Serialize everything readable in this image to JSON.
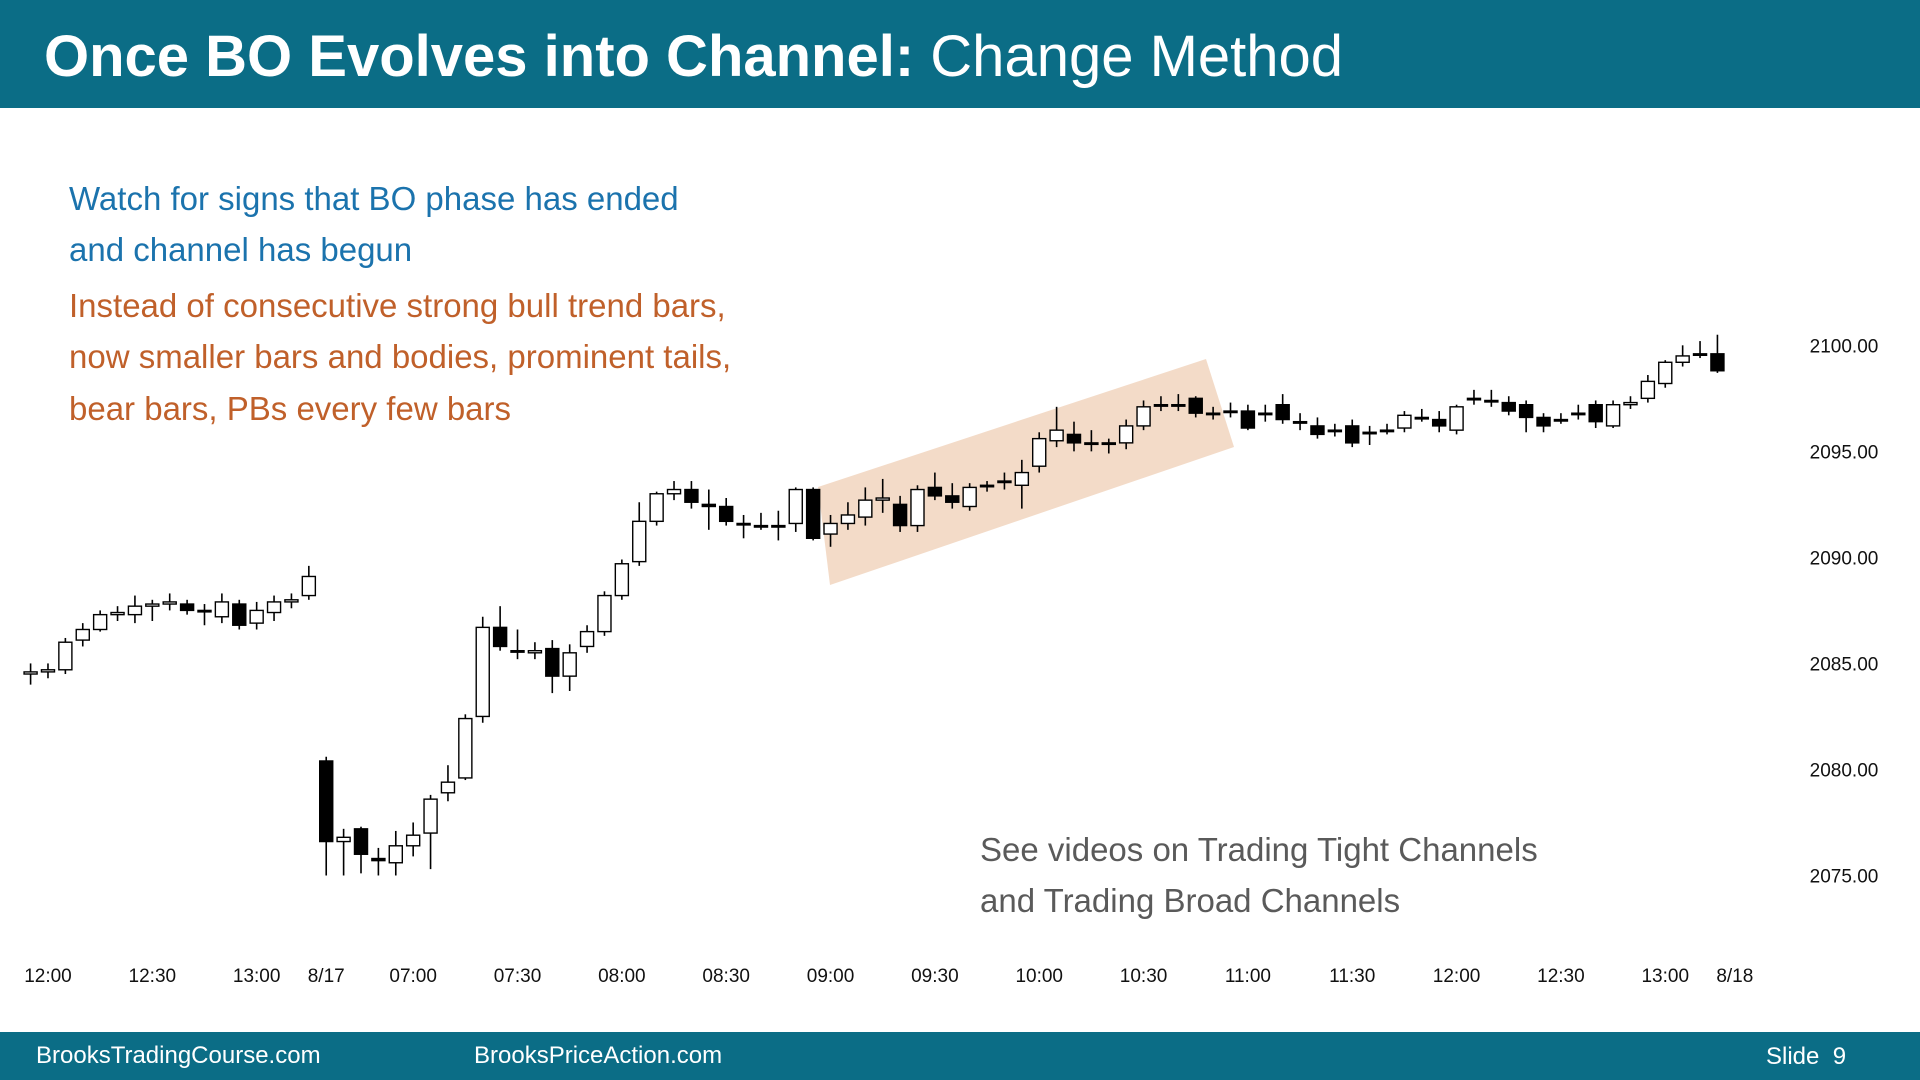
{
  "header": {
    "title_bold": "Once BO Evolves into Channel:",
    "title_rest": "Change Method"
  },
  "notes": {
    "blue": [
      "Watch for signs that BO phase has ended",
      "and channel has begun"
    ],
    "orange": [
      "Instead of consecutive strong bull trend bars,",
      "now smaller bars and bodies, prominent tails,",
      "bear bars, PBs every few bars"
    ],
    "gray": [
      "See videos on Trading Tight Channels",
      "and Trading Broad Channels"
    ]
  },
  "footer": {
    "left": "BrooksTradingCourse.com",
    "middle": "BrooksPriceAction.com",
    "slide": "Slide  9"
  },
  "chart_data": {
    "type": "candlestick",
    "bull_color": "#ffffff",
    "bear_color": "#000000",
    "edge_color": "#000000",
    "xlim": [
      -1,
      100
    ],
    "ylim": [
      2072,
      2104
    ],
    "xticks": [
      {
        "value": 1,
        "label": "12:00"
      },
      {
        "value": 7,
        "label": "12:30"
      },
      {
        "value": 13,
        "label": "13:00"
      },
      {
        "value": 17,
        "label": "8/17"
      },
      {
        "value": 22,
        "label": "07:00"
      },
      {
        "value": 28,
        "label": "07:30"
      },
      {
        "value": 34,
        "label": "08:00"
      },
      {
        "value": 40,
        "label": "08:30"
      },
      {
        "value": 46,
        "label": "09:00"
      },
      {
        "value": 52,
        "label": "09:30"
      },
      {
        "value": 58,
        "label": "10:00"
      },
      {
        "value": 64,
        "label": "10:30"
      },
      {
        "value": 70,
        "label": "11:00"
      },
      {
        "value": 76,
        "label": "11:30"
      },
      {
        "value": 82,
        "label": "12:00"
      },
      {
        "value": 88,
        "label": "12:30"
      },
      {
        "value": 94,
        "label": "13:00"
      },
      {
        "value": 98,
        "label": "8/18"
      }
    ],
    "yticks": [
      {
        "value": 2075,
        "label": "2075.00"
      },
      {
        "value": 2080,
        "label": "2080.00"
      },
      {
        "value": 2085,
        "label": "2085.00"
      },
      {
        "value": 2090,
        "label": "2090.00"
      },
      {
        "value": 2095,
        "label": "2095.00"
      },
      {
        "value": 2100,
        "label": "2100.00"
      }
    ],
    "open": [
      2084.5,
      2084.6,
      2084.7,
      2086.1,
      2086.6,
      2087.3,
      2087.3,
      2087.7,
      2087.8,
      2087.8,
      2087.5,
      2087.2,
      2087.8,
      2086.9,
      2087.4,
      2087.9,
      2088.2,
      2080.4,
      2076.6,
      2077.2,
      2075.8,
      2075.6,
      2076.4,
      2077.0,
      2078.9,
      2079.6,
      2082.5,
      2086.7,
      2085.6,
      2085.5,
      2085.7,
      2084.4,
      2085.8,
      2086.5,
      2088.2,
      2089.8,
      2091.7,
      2093.0,
      2093.2,
      2092.5,
      2092.4,
      2091.6,
      2091.5,
      2091.5,
      2091.6,
      2093.2,
      2091.1,
      2091.6,
      2091.9,
      2092.7,
      2092.5,
      2091.5,
      2093.3,
      2092.9,
      2092.4,
      2093.4,
      2093.6,
      2093.4,
      2094.3,
      2095.5,
      2095.8,
      2095.4,
      2095.4,
      2095.4,
      2096.2,
      2097.2,
      2097.2,
      2097.5,
      2096.8,
      2096.9,
      2096.9,
      2096.8,
      2097.2,
      2096.4,
      2096.2,
      2096.0,
      2096.2,
      2095.9,
      2096.0,
      2096.1,
      2096.6,
      2096.5,
      2096.0,
      2097.5,
      2097.4,
      2097.3,
      2097.2,
      2096.6,
      2096.5,
      2096.8,
      2097.2,
      2096.2,
      2097.2,
      2097.5,
      2098.2,
      2099.2,
      2099.6,
      2099.6
    ],
    "high": [
      2085.0,
      2085.0,
      2086.2,
      2086.9,
      2087.5,
      2087.7,
      2088.2,
      2088.0,
      2088.3,
      2088.0,
      2087.8,
      2088.3,
      2088.0,
      2087.9,
      2088.2,
      2088.3,
      2089.6,
      2080.6,
      2077.2,
      2077.3,
      2076.3,
      2077.1,
      2077.5,
      2078.8,
      2080.2,
      2082.6,
      2087.2,
      2087.7,
      2086.6,
      2086.0,
      2086.1,
      2085.9,
      2086.8,
      2088.4,
      2089.9,
      2092.6,
      2093.1,
      2093.6,
      2093.6,
      2093.2,
      2092.8,
      2092.0,
      2092.1,
      2092.2,
      2093.3,
      2093.3,
      2092.0,
      2092.6,
      2093.3,
      2093.7,
      2092.9,
      2093.4,
      2094.0,
      2093.5,
      2093.5,
      2093.6,
      2094.0,
      2094.6,
      2095.9,
      2097.1,
      2096.4,
      2096.0,
      2095.6,
      2096.5,
      2097.4,
      2097.6,
      2097.7,
      2097.6,
      2097.1,
      2097.3,
      2097.2,
      2097.2,
      2097.7,
      2096.8,
      2096.6,
      2096.3,
      2096.5,
      2096.2,
      2096.3,
      2096.9,
      2097.0,
      2096.9,
      2097.2,
      2097.9,
      2097.9,
      2097.6,
      2097.4,
      2096.8,
      2096.8,
      2097.2,
      2097.4,
      2097.4,
      2097.6,
      2098.6,
      2099.3,
      2100.0,
      2100.2,
      2100.5
    ],
    "low": [
      2084.0,
      2084.3,
      2084.5,
      2085.8,
      2086.5,
      2087.0,
      2086.9,
      2087.0,
      2087.5,
      2087.3,
      2086.8,
      2086.9,
      2086.6,
      2086.6,
      2087.0,
      2087.6,
      2088.0,
      2075.0,
      2075.0,
      2075.1,
      2075.0,
      2075.0,
      2075.9,
      2075.3,
      2078.5,
      2079.5,
      2082.2,
      2085.6,
      2085.2,
      2085.2,
      2083.6,
      2083.7,
      2085.5,
      2086.3,
      2088.0,
      2089.6,
      2091.5,
      2092.7,
      2092.3,
      2091.3,
      2091.5,
      2090.9,
      2091.3,
      2090.8,
      2091.2,
      2090.8,
      2090.5,
      2091.3,
      2091.5,
      2092.1,
      2091.2,
      2091.2,
      2092.7,
      2092.3,
      2092.2,
      2093.1,
      2093.2,
      2092.3,
      2094.0,
      2095.2,
      2095.0,
      2095.0,
      2094.9,
      2095.1,
      2096.0,
      2096.9,
      2096.9,
      2096.6,
      2096.5,
      2096.6,
      2096.0,
      2096.4,
      2096.3,
      2096.0,
      2095.6,
      2095.7,
      2095.2,
      2095.3,
      2095.8,
      2095.9,
      2096.4,
      2095.9,
      2095.8,
      2097.2,
      2097.1,
      2096.7,
      2095.9,
      2095.9,
      2096.3,
      2096.5,
      2096.1,
      2096.1,
      2097.0,
      2097.3,
      2098.0,
      2099.0,
      2099.4,
      2098.7
    ],
    "close": [
      2084.6,
      2084.7,
      2086.0,
      2086.6,
      2087.3,
      2087.4,
      2087.7,
      2087.8,
      2087.9,
      2087.5,
      2087.5,
      2087.9,
      2086.8,
      2087.5,
      2087.9,
      2088.0,
      2089.1,
      2076.6,
      2076.8,
      2076.0,
      2075.7,
      2076.4,
      2076.9,
      2078.6,
      2079.4,
      2082.4,
      2086.7,
      2085.8,
      2085.6,
      2085.6,
      2084.4,
      2085.5,
      2086.5,
      2088.2,
      2089.7,
      2091.7,
      2093.0,
      2093.2,
      2092.6,
      2092.4,
      2091.7,
      2091.6,
      2091.5,
      2091.5,
      2093.2,
      2090.9,
      2091.6,
      2092.0,
      2092.7,
      2092.8,
      2091.5,
      2093.2,
      2092.9,
      2092.6,
      2093.3,
      2093.4,
      2093.6,
      2094.0,
      2095.6,
      2096.0,
      2095.4,
      2095.4,
      2095.4,
      2096.2,
      2097.1,
      2097.2,
      2097.2,
      2096.8,
      2096.8,
      2096.9,
      2096.1,
      2096.8,
      2096.5,
      2096.4,
      2095.8,
      2096.0,
      2095.4,
      2095.9,
      2096.0,
      2096.7,
      2096.6,
      2096.2,
      2097.1,
      2097.5,
      2097.4,
      2096.9,
      2096.6,
      2096.2,
      2096.5,
      2096.8,
      2096.4,
      2097.2,
      2097.3,
      2098.3,
      2099.2,
      2099.5,
      2099.6,
      2098.8
    ]
  }
}
